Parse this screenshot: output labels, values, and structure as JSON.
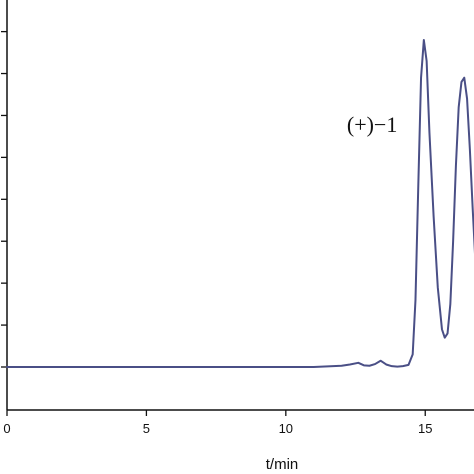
{
  "chart_data": {
    "type": "line",
    "title": "",
    "xlabel": "t/min",
    "ylabel": "",
    "xlim": [
      0,
      17
    ],
    "ylim": [
      -0.5,
      10
    ],
    "x_ticks": [
      0,
      5,
      10,
      15
    ],
    "x_tick_labels": [
      "0",
      "5",
      "10",
      "15"
    ],
    "y_ticks": [
      0,
      1,
      2,
      3,
      4,
      5,
      6,
      7,
      8,
      9
    ],
    "y_tick_labels": [],
    "grid": false,
    "line_color": "#4a4f86",
    "series": [
      {
        "x": [
          0,
          2,
          4,
          6,
          8,
          10,
          11,
          12,
          12.3,
          12.6,
          12.8,
          13.0,
          13.2,
          13.4,
          13.6,
          13.8,
          14.0,
          14.2,
          14.4,
          14.55,
          14.65,
          14.75,
          14.85,
          14.95,
          15.05,
          15.15,
          15.3,
          15.45,
          15.6,
          15.7,
          15.8,
          15.9,
          16.0,
          16.1,
          16.2,
          16.3,
          16.4,
          16.5,
          16.6,
          16.7,
          16.8,
          16.9,
          17.0
        ],
        "y": [
          0,
          0,
          0,
          0,
          0,
          0,
          0,
          0.03,
          0.06,
          0.1,
          0.04,
          0.03,
          0.07,
          0.15,
          0.06,
          0.02,
          0.01,
          0.02,
          0.05,
          0.3,
          1.6,
          4.3,
          6.9,
          7.8,
          7.3,
          5.6,
          3.6,
          1.9,
          0.9,
          0.7,
          0.8,
          1.5,
          3.0,
          4.8,
          6.2,
          6.8,
          6.9,
          6.4,
          5.2,
          3.8,
          2.5,
          1.6,
          1.2
        ]
      }
    ],
    "annotations": [
      {
        "text": "(+)−1",
        "x": 14.0,
        "y": 5.6
      }
    ]
  }
}
